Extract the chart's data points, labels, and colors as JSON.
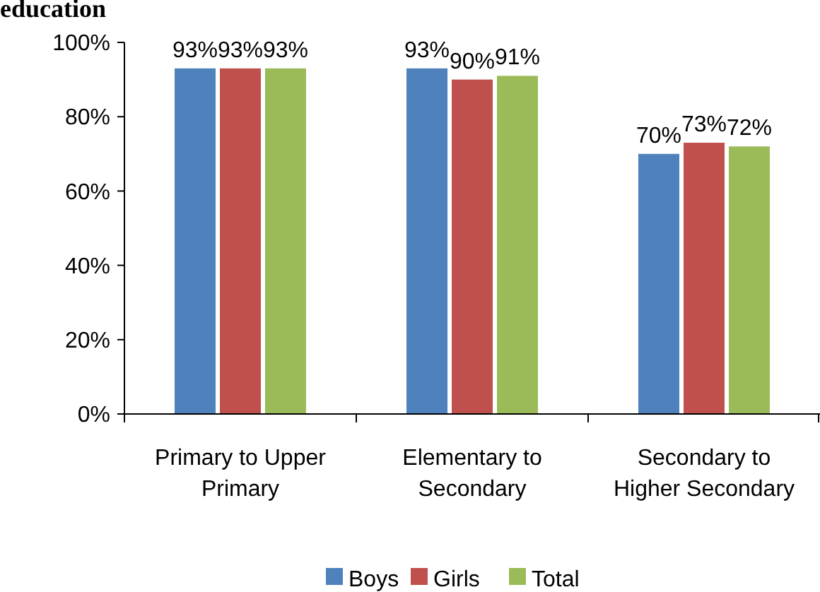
{
  "chart_data": {
    "type": "bar",
    "title": "education",
    "categories": [
      "Primary to Upper Primary",
      "Elementary to Secondary",
      "Secondary to Higher Secondary"
    ],
    "series": [
      {
        "name": "Boys",
        "color": "#4f81bd",
        "values": [
          93,
          93,
          70
        ],
        "value_labels": [
          "93%",
          "93%",
          "70%"
        ]
      },
      {
        "name": "Girls",
        "color": "#c0504d",
        "values": [
          93,
          90,
          73
        ],
        "value_labels": [
          "93%",
          "90%",
          "73%"
        ]
      },
      {
        "name": "Total",
        "color": "#9bbb59",
        "values": [
          93,
          91,
          72
        ],
        "value_labels": [
          "93%",
          "91%",
          "72%"
        ]
      }
    ],
    "ylim": [
      0,
      100
    ],
    "yticks": [
      {
        "value": 0,
        "label": "0%"
      },
      {
        "value": 20,
        "label": "20%"
      },
      {
        "value": 40,
        "label": "40%"
      },
      {
        "value": 60,
        "label": "60%"
      },
      {
        "value": 80,
        "label": "80%"
      },
      {
        "value": 100,
        "label": "100%"
      }
    ],
    "grid": false,
    "legend": "bottom"
  }
}
